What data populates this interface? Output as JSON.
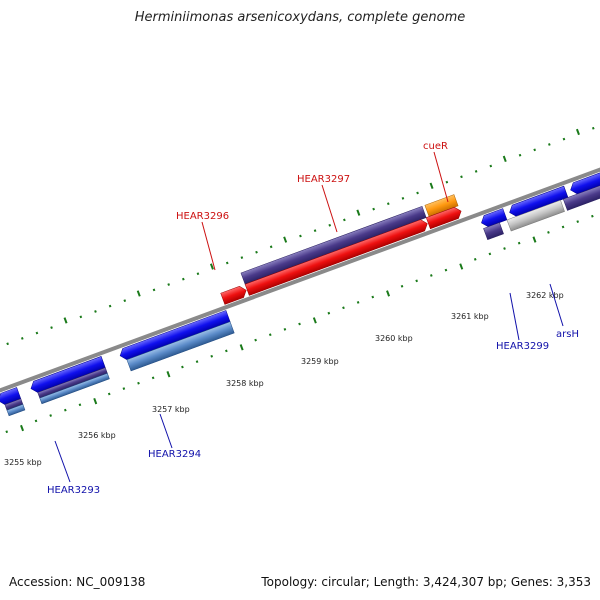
{
  "title": "Herminiimonas arsenicoxydans, complete genome",
  "footer": {
    "accession": "Accession: NC_009138",
    "stats": "Topology: circular; Length: 3,424,307 bp; Genes: 3,353"
  },
  "colors": {
    "backbone": "#8a8a8a",
    "tick": "#1a7a1a",
    "forward_label": "#cc1111",
    "reverse_label": "#1111aa"
  },
  "tick_labels": [
    "3255 kbp",
    "3256 kbp",
    "3257 kbp",
    "3258 kbp",
    "3259 kbp",
    "3260 kbp",
    "3261 kbp",
    "3262 kbp"
  ],
  "gene_labels": [
    {
      "text": "cueR",
      "strand": "forward"
    },
    {
      "text": "HEAR3297",
      "strand": "forward"
    },
    {
      "text": "HEAR3296",
      "strand": "forward"
    },
    {
      "text": "HEAR3299",
      "strand": "reverse"
    },
    {
      "text": "arsH",
      "strand": "reverse"
    },
    {
      "text": "HEAR3294",
      "strand": "reverse"
    },
    {
      "text": "HEAR3293",
      "strand": "reverse"
    }
  ]
}
